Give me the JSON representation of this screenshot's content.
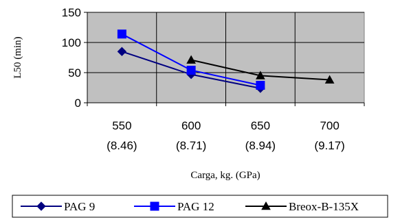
{
  "chart_data": {
    "type": "line",
    "categories": [
      [
        "550",
        "(8.46)"
      ],
      [
        "600",
        "(8.71)"
      ],
      [
        "650",
        "(8.94)"
      ],
      [
        "700",
        "(9.17)"
      ]
    ],
    "xlabel": "Carga, kg. (GPa)",
    "ylabel": "L50 (min)",
    "ylim": [
      0,
      150
    ],
    "yticks": [
      0,
      50,
      100,
      150
    ],
    "grid": true,
    "plot_background": "#c0c0c0",
    "legend_position": "bottom",
    "series": [
      {
        "name": "PAG 9",
        "values": [
          85,
          47,
          24,
          null
        ],
        "color": "#000080",
        "marker": "diamond"
      },
      {
        "name": "PAG 12",
        "values": [
          114,
          54,
          29,
          null
        ],
        "color": "#0000ff",
        "marker": "square"
      },
      {
        "name": "Breox-B-135X",
        "values": [
          null,
          71,
          45,
          38
        ],
        "color": "#000000",
        "marker": "triangle"
      }
    ]
  }
}
